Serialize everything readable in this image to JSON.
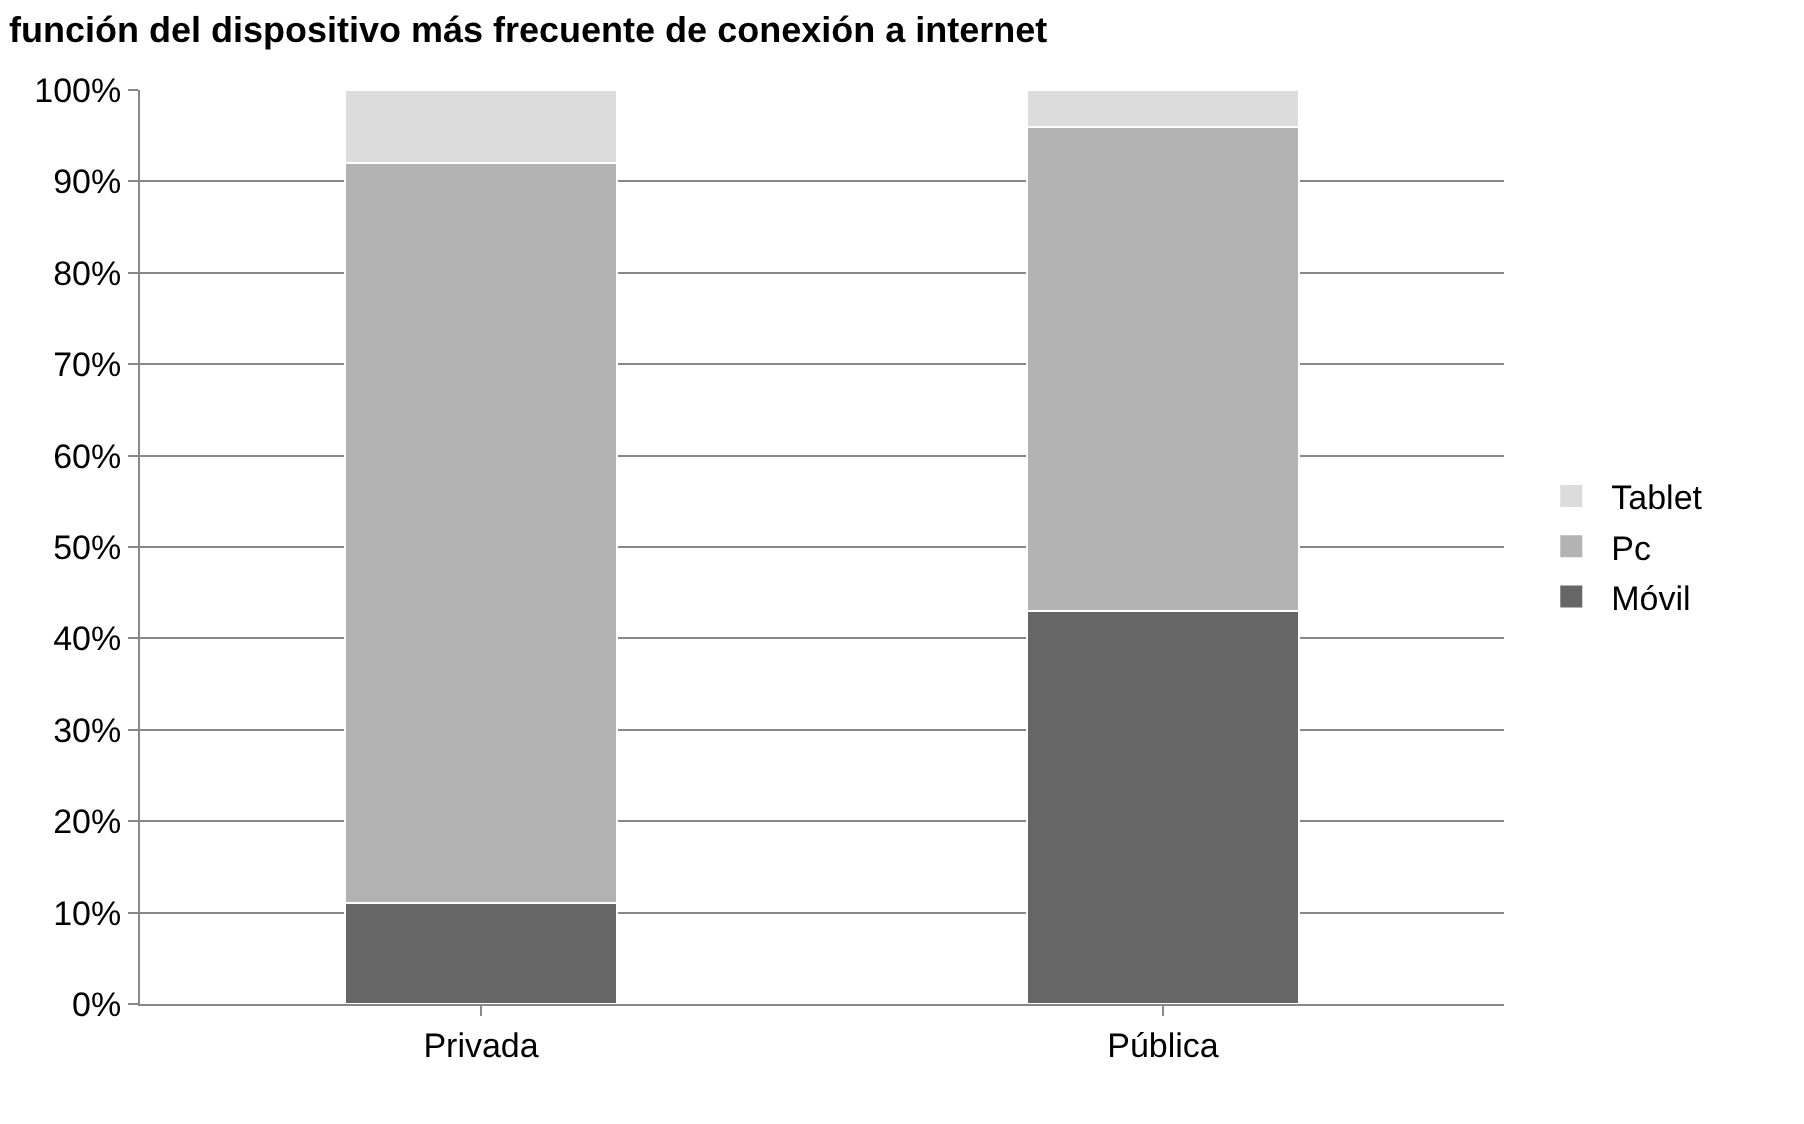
{
  "chart_data": {
    "type": "bar",
    "title": "función del dispositivo más frecuente de conexión a internet",
    "categories": [
      "Privada",
      "Pública"
    ],
    "stacked": true,
    "series": [
      {
        "name": "Móvil",
        "color": "#666666",
        "values": [
          11,
          43
        ]
      },
      {
        "name": "Pc",
        "color": "#b3b3b3",
        "values": [
          81,
          53
        ]
      },
      {
        "name": "Tablet",
        "color": "#dcdcdc",
        "values": [
          8,
          4
        ]
      }
    ],
    "ylim": [
      0,
      100
    ],
    "yticks": [
      {
        "value": 0,
        "label": "0%"
      },
      {
        "value": 10,
        "label": "10%"
      },
      {
        "value": 20,
        "label": "20%"
      },
      {
        "value": 30,
        "label": "30%"
      },
      {
        "value": 40,
        "label": "40%"
      },
      {
        "value": 50,
        "label": "50%"
      },
      {
        "value": 60,
        "label": "60%"
      },
      {
        "value": 70,
        "label": "70%"
      },
      {
        "value": 80,
        "label": "80%"
      },
      {
        "value": 90,
        "label": "90%"
      },
      {
        "value": 100,
        "label": "100%"
      }
    ],
    "grid": "y",
    "legend": "right"
  }
}
